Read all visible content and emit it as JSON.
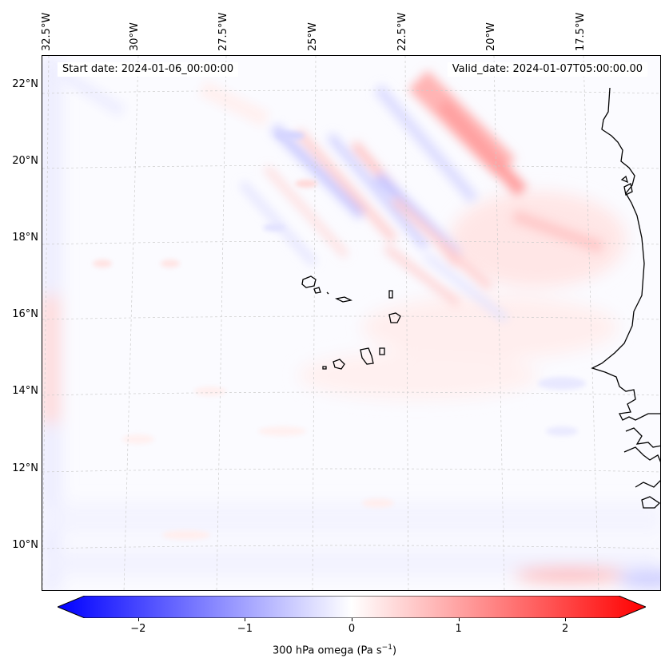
{
  "map": {
    "start_date": "Start date: 2024-01-06_00:00:00",
    "valid_date": "Valid_date: 2024-01-07T05:00:00.00",
    "lon_labels": [
      "32.5°W",
      "30°W",
      "27.5°W",
      "25°W",
      "22.5°W",
      "20°W",
      "17.5°W"
    ],
    "lat_labels": [
      "22°N",
      "20°N",
      "18°N",
      "16°N",
      "14°N",
      "12°N",
      "10°N"
    ],
    "grid_color": "#cccccc",
    "coast_color": "#000000"
  },
  "colorbar": {
    "ticks": [
      "−2",
      "−1",
      "0",
      "1",
      "2"
    ],
    "tick_values": [
      -2,
      -1,
      0,
      1,
      2
    ],
    "range": [
      -2.5,
      2.5
    ],
    "label_text": "300 hPa omega (Pa s",
    "label_exp": "−1",
    "label_close": ")",
    "low_color": "#0000ff",
    "mid_color": "#ffffff",
    "high_color": "#ff0000"
  }
}
